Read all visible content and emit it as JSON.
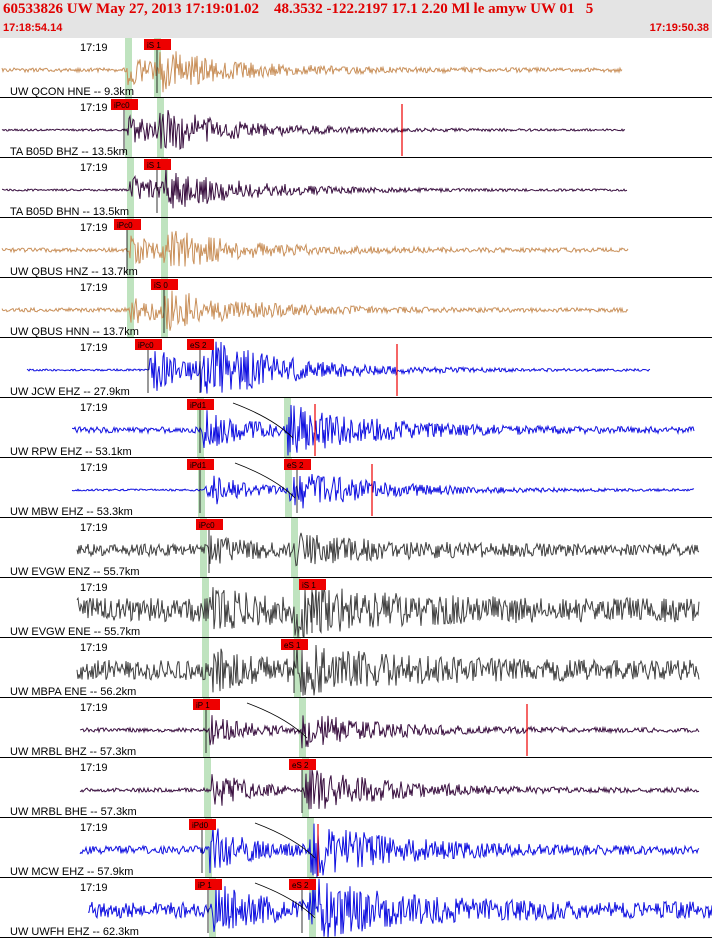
{
  "header": {
    "title": "60533826 UW May 27, 2013 17:19:01.02    48.3532 -122.2197 17.1 2.20 Ml le amyw UW 01   5",
    "start_time": "17:18:54.14",
    "end_time": "17:19:50.38"
  },
  "colors": {
    "header_bg": "#e4e4e4",
    "header_text": "#e00000",
    "pick_flag": "#ee0000",
    "arrival_band": "#bfe3bf",
    "trace_tan": "#c9905a",
    "trace_purple": "#3a1040",
    "trace_blue": "#1010e0",
    "trace_gray": "#404040"
  },
  "channels": [
    {
      "label": "UW QCON HNE -- 9.3km",
      "time": "17:19",
      "color": "tan",
      "picks": [
        "iS 1"
      ]
    },
    {
      "label": "TA B05D BHZ -- 13.5km",
      "time": "17:19",
      "color": "purple",
      "picks": [
        "iPc0"
      ]
    },
    {
      "label": "TA B05D BHN -- 13.5km",
      "time": "17:19",
      "color": "purple",
      "picks": [
        "iS 1"
      ]
    },
    {
      "label": "UW QBUS HNZ -- 13.7km",
      "time": "17:19",
      "color": "tan",
      "picks": [
        "iPc0"
      ]
    },
    {
      "label": "UW QBUS HNN -- 13.7km",
      "time": "17:19",
      "color": "tan",
      "picks": [
        "iS 0"
      ]
    },
    {
      "label": "UW JCW EHZ -- 27.9km",
      "time": "17:19",
      "color": "blue",
      "picks": [
        "iPc0",
        "eS 2"
      ]
    },
    {
      "label": "UW RPW EHZ -- 53.1km",
      "time": "17:19",
      "color": "blue",
      "picks": [
        "iPd1"
      ]
    },
    {
      "label": "UW MBW EHZ -- 53.3km",
      "time": "17:19",
      "color": "blue",
      "picks": [
        "iPd1",
        "eS 2"
      ]
    },
    {
      "label": "UW EVGW ENZ -- 55.7km",
      "time": "17:19",
      "color": "gray",
      "picks": [
        "iPc0"
      ]
    },
    {
      "label": "UW EVGW ENE -- 55.7km",
      "time": "17:19",
      "color": "gray",
      "picks": [
        "iS 1"
      ]
    },
    {
      "label": "UW MBPA ENE -- 56.2km",
      "time": "17:19",
      "color": "gray",
      "picks": [
        "eS 1"
      ]
    },
    {
      "label": "UW MRBL BHZ -- 57.3km",
      "time": "17:19",
      "color": "purple",
      "picks": [
        "iP 1"
      ]
    },
    {
      "label": "UW MRBL BHE -- 57.3km",
      "time": "17:19",
      "color": "purple",
      "picks": [
        "eS 2"
      ]
    },
    {
      "label": "UW MCW EHZ -- 57.9km",
      "time": "17:19",
      "color": "blue",
      "picks": [
        "iPd0"
      ]
    },
    {
      "label": "UW UWFH EHZ -- 62.3km",
      "time": "17:19",
      "color": "blue",
      "picks": [
        "iP 1",
        "eS 2"
      ]
    }
  ]
}
